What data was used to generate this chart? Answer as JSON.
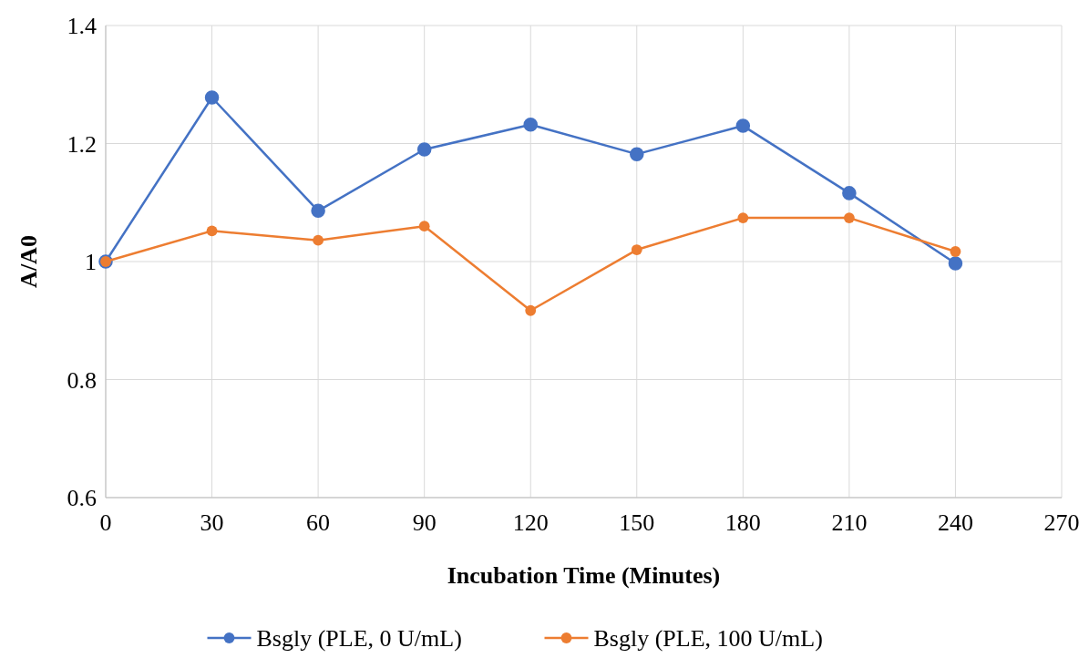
{
  "chart_data": {
    "type": "line",
    "xlabel": "Incubation Time (Minutes)",
    "ylabel": "A/A0",
    "x": [
      0,
      30,
      60,
      90,
      120,
      150,
      180,
      210,
      240
    ],
    "series": [
      {
        "name": "Bsgly (PLE, 0 U/mL)",
        "color": "#4472c4",
        "values": [
          1.0,
          1.278,
          1.086,
          1.19,
          1.232,
          1.182,
          1.23,
          1.116,
          0.997
        ]
      },
      {
        "name": "Bsgly (PLE, 100 U/mL)",
        "color": "#ed7d31",
        "values": [
          1.0,
          1.052,
          1.036,
          1.06,
          0.917,
          1.02,
          1.074,
          1.074,
          1.017
        ]
      }
    ],
    "xlim": [
      0,
      270
    ],
    "xticks": [
      0,
      30,
      60,
      90,
      120,
      150,
      180,
      210,
      240,
      270
    ],
    "ylim": [
      0.6,
      1.4
    ],
    "yticks": [
      0.6,
      0.8,
      1,
      1.2,
      1.4
    ],
    "grid": true,
    "legend": "bottom",
    "marker": "circle",
    "line_style": "solid"
  }
}
